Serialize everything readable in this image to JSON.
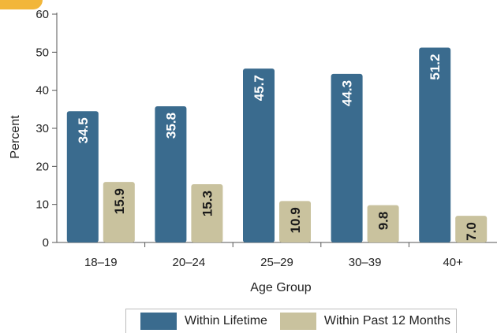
{
  "chart_data": {
    "type": "bar",
    "categories": [
      "18–19",
      "20–24",
      "25–29",
      "30–39",
      "40+"
    ],
    "series": [
      {
        "name": "Within Lifetime",
        "color": "#3a6b8e",
        "values": [
          34.5,
          35.8,
          45.7,
          44.3,
          51.2
        ]
      },
      {
        "name": "Within Past 12 Months",
        "color": "#c9c29e",
        "values": [
          15.9,
          15.3,
          10.9,
          9.8,
          7.0
        ]
      }
    ],
    "xlabel": "Age Group",
    "ylabel": "Percent",
    "ylim": [
      0,
      60
    ],
    "yticks": [
      0,
      10,
      20,
      30,
      40,
      50,
      60
    ],
    "grid": false,
    "legend_position": "bottom",
    "data_label_colors": {
      "Within Lifetime": "#ffffff",
      "Within Past 12 Months": "#1a1a1a"
    }
  }
}
